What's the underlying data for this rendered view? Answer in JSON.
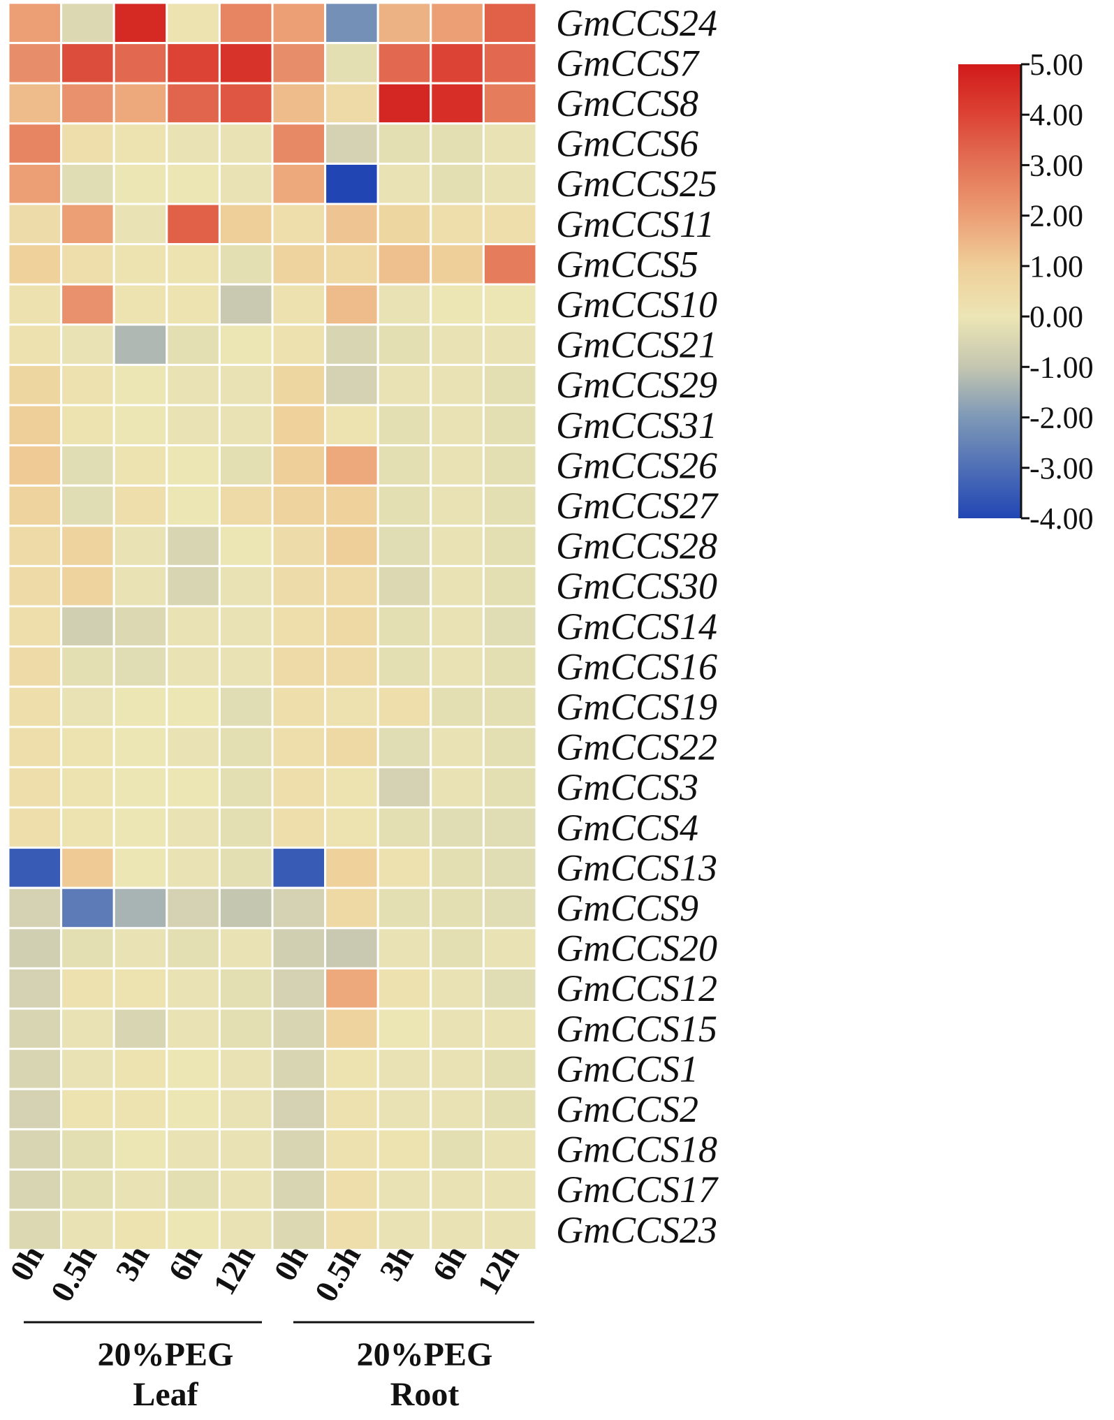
{
  "chart_data": {
    "type": "heatmap",
    "rows": [
      "GmCCS24",
      "GmCCS7",
      "GmCCS8",
      "GmCCS6",
      "GmCCS25",
      "GmCCS11",
      "GmCCS5",
      "GmCCS10",
      "GmCCS21",
      "GmCCS29",
      "GmCCS31",
      "GmCCS26",
      "GmCCS27",
      "GmCCS28",
      "GmCCS30",
      "GmCCS14",
      "GmCCS16",
      "GmCCS19",
      "GmCCS22",
      "GmCCS3",
      "GmCCS4",
      "GmCCS13",
      "GmCCS9",
      "GmCCS20",
      "GmCCS12",
      "GmCCS15",
      "GmCCS1",
      "GmCCS2",
      "GmCCS18",
      "GmCCS17",
      "GmCCS23"
    ],
    "columns": [
      "0h",
      "0.5h",
      "3h",
      "6h",
      "12h",
      "0h",
      "0.5h",
      "3h",
      "6h",
      "12h"
    ],
    "groups": [
      {
        "label_line1": "20%PEG",
        "label_line2": "Leaf",
        "columns": [
          0,
          1,
          2,
          3,
          4
        ]
      },
      {
        "label_line1": "20%PEG",
        "label_line2": "Root",
        "columns": [
          5,
          6,
          7,
          8,
          9
        ]
      }
    ],
    "values": [
      [
        2.0,
        -0.4,
        4.6,
        0.1,
        2.6,
        2.0,
        -2.2,
        1.6,
        2.0,
        3.4
      ],
      [
        2.4,
        3.8,
        3.2,
        4.0,
        4.4,
        2.4,
        -0.2,
        3.2,
        4.0,
        3.2
      ],
      [
        1.4,
        2.3,
        1.8,
        3.3,
        3.6,
        1.4,
        0.5,
        4.7,
        4.5,
        2.8
      ],
      [
        2.6,
        0.3,
        0.1,
        -0.1,
        -0.1,
        2.5,
        -0.6,
        -0.2,
        -0.2,
        -0.1
      ],
      [
        2.0,
        -0.3,
        0.0,
        0.0,
        -0.1,
        1.8,
        -4.0,
        -0.1,
        -0.2,
        -0.1
      ],
      [
        0.4,
        2.0,
        -0.1,
        3.4,
        1.0,
        0.3,
        1.2,
        0.7,
        0.3,
        0.3
      ],
      [
        0.9,
        0.3,
        0.1,
        0.1,
        -0.2,
        0.8,
        0.6,
        1.3,
        1.0,
        2.8
      ],
      [
        0.2,
        2.3,
        0.1,
        0.1,
        -0.9,
        0.2,
        1.4,
        -0.1,
        0.0,
        0.0
      ],
      [
        0.2,
        -0.1,
        -1.3,
        -0.2,
        0.0,
        0.2,
        -0.5,
        -0.2,
        -0.1,
        -0.1
      ],
      [
        0.7,
        0.2,
        0.0,
        -0.1,
        -0.1,
        0.7,
        -0.6,
        -0.1,
        -0.1,
        -0.2
      ],
      [
        1.0,
        0.1,
        0.0,
        -0.1,
        -0.1,
        0.9,
        0.1,
        -0.2,
        -0.1,
        -0.2
      ],
      [
        1.1,
        -0.3,
        0.1,
        0.0,
        -0.2,
        1.0,
        1.8,
        -0.2,
        -0.1,
        -0.2
      ],
      [
        0.8,
        -0.3,
        0.3,
        0.0,
        0.5,
        0.8,
        0.9,
        -0.2,
        -0.1,
        -0.2
      ],
      [
        0.5,
        0.8,
        -0.1,
        -0.5,
        0.0,
        0.4,
        1.0,
        -0.3,
        -0.1,
        -0.2
      ],
      [
        0.5,
        0.8,
        -0.1,
        -0.5,
        -0.1,
        0.4,
        0.5,
        -0.4,
        -0.1,
        -0.2
      ],
      [
        0.3,
        -0.7,
        -0.4,
        -0.1,
        -0.1,
        0.3,
        0.6,
        -0.2,
        -0.1,
        -0.3
      ],
      [
        0.5,
        -0.2,
        -0.3,
        -0.1,
        -0.1,
        0.5,
        0.5,
        -0.2,
        -0.1,
        -0.2
      ],
      [
        0.3,
        -0.1,
        0.0,
        0.0,
        -0.3,
        0.3,
        0.2,
        0.3,
        -0.2,
        -0.2
      ],
      [
        0.3,
        0.1,
        0.0,
        -0.1,
        -0.2,
        0.3,
        0.6,
        -0.3,
        -0.1,
        -0.2
      ],
      [
        0.3,
        0.1,
        0.0,
        0.0,
        -0.2,
        0.3,
        0.1,
        -0.6,
        -0.1,
        -0.2
      ],
      [
        0.3,
        0.1,
        0.0,
        -0.1,
        -0.2,
        0.3,
        0.1,
        -0.2,
        -0.3,
        -0.3
      ],
      [
        -3.5,
        1.1,
        0.0,
        -0.1,
        -0.2,
        -3.5,
        0.9,
        0.2,
        -0.2,
        -0.3
      ],
      [
        -0.6,
        -2.7,
        -1.4,
        -0.6,
        -1.0,
        -0.6,
        0.6,
        -0.2,
        -0.2,
        -0.3
      ],
      [
        -0.7,
        -0.2,
        -0.1,
        -0.2,
        -0.1,
        -0.7,
        -0.9,
        -0.1,
        -0.2,
        -0.1
      ],
      [
        -0.6,
        0.2,
        0.1,
        -0.1,
        -0.2,
        -0.6,
        1.8,
        0.2,
        -0.1,
        -0.3
      ],
      [
        -0.5,
        -0.1,
        -0.5,
        -0.1,
        -0.2,
        -0.5,
        0.8,
        0.0,
        -0.1,
        -0.1
      ],
      [
        -0.5,
        -0.1,
        0.1,
        0.0,
        -0.1,
        -0.5,
        0.1,
        -0.1,
        -0.1,
        -0.2
      ],
      [
        -0.6,
        0.1,
        0.1,
        0.0,
        -0.1,
        -0.6,
        0.2,
        -0.1,
        -0.1,
        -0.2
      ],
      [
        -0.5,
        -0.2,
        0.0,
        -0.1,
        -0.1,
        -0.5,
        0.2,
        0.1,
        -0.2,
        -0.1
      ],
      [
        -0.5,
        -0.2,
        -0.1,
        -0.2,
        -0.1,
        -0.5,
        0.3,
        -0.1,
        -0.1,
        -0.1
      ],
      [
        -0.4,
        -0.1,
        0.1,
        0.0,
        -0.1,
        -0.4,
        0.3,
        -0.1,
        -0.1,
        -0.1
      ]
    ],
    "colorbar": {
      "min": -4.0,
      "max": 5.0,
      "ticks": [
        "5.00",
        "4.00",
        "3.00",
        "2.00",
        "1.00",
        "0.00",
        "-1.00",
        "-2.00",
        "-3.00",
        "-4.00"
      ],
      "stops": [
        {
          "value": -4.0,
          "color": "#2146b4"
        },
        {
          "value": -2.0,
          "color": "#7d98b7"
        },
        {
          "value": -1.0,
          "color": "#c4c6b0"
        },
        {
          "value": 0.0,
          "color": "#ece5b4"
        },
        {
          "value": 1.0,
          "color": "#efcf99"
        },
        {
          "value": 2.0,
          "color": "#ec9e75"
        },
        {
          "value": 3.0,
          "color": "#e37356"
        },
        {
          "value": 4.0,
          "color": "#dc4334"
        },
        {
          "value": 5.0,
          "color": "#d11a1a"
        }
      ]
    }
  }
}
